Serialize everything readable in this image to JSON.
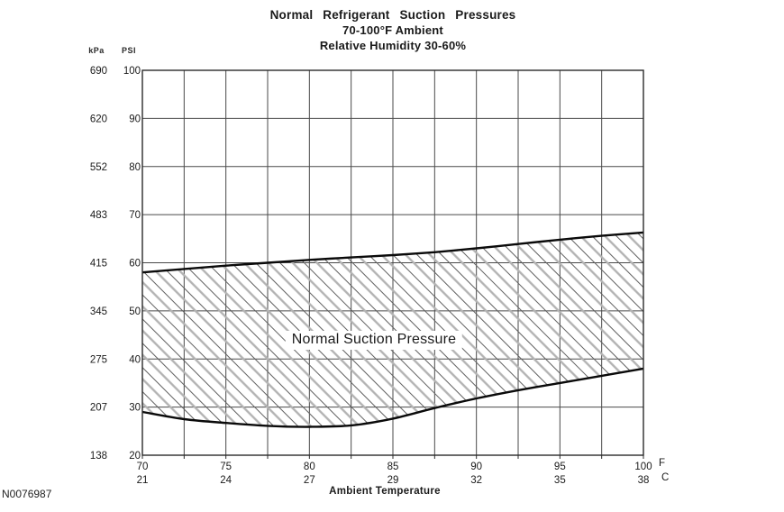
{
  "figure_id": "N0076987",
  "chart_data": {
    "type": "area",
    "title": "Normal Refrigerant Suction Pressures",
    "subtitle_ambient": "70-100°F Ambient",
    "subtitle_humidity": "Relative Humidity 30-60%",
    "band_label": "Normal Suction Pressure",
    "xlabel": "Ambient Temperature",
    "axis_units": {
      "y_left": "kPa",
      "y_right": "PSI",
      "x_primary": "F",
      "x_secondary": "C"
    },
    "xlim_f": [
      70,
      100
    ],
    "ylim_psi": [
      20,
      100
    ],
    "x_grid_step_f": 2.5,
    "y_grid_step_psi": 10,
    "grid": "on",
    "legend": "none",
    "band_fill": "diagonal-hatch",
    "x_ticks_f": [
      70,
      75,
      80,
      85,
      90,
      95,
      100
    ],
    "x_ticks_c": [
      21,
      24,
      27,
      29,
      32,
      35,
      38
    ],
    "y_ticks_psi": [
      100,
      90,
      80,
      70,
      60,
      50,
      40,
      30,
      20
    ],
    "y_ticks_kpa": [
      690,
      620,
      552,
      483,
      415,
      345,
      275,
      207,
      138
    ],
    "series": [
      {
        "name": "upper-normal-limit",
        "x_f": [
          70,
          72.5,
          75,
          77.5,
          80,
          82.5,
          85,
          87.5,
          90,
          92.5,
          95,
          97.5,
          100
        ],
        "psi": [
          58.0,
          58.7,
          59.4,
          60.0,
          60.6,
          61.1,
          61.6,
          62.2,
          63.0,
          63.9,
          64.8,
          65.6,
          66.3
        ]
      },
      {
        "name": "lower-normal-limit",
        "x_f": [
          70,
          72.5,
          75,
          77.5,
          80,
          82.5,
          85,
          87.5,
          90,
          92.5,
          95,
          97.5,
          100
        ],
        "psi": [
          29.0,
          27.5,
          26.7,
          26.1,
          25.9,
          26.2,
          27.6,
          29.8,
          31.8,
          33.5,
          35.0,
          36.5,
          38.0
        ]
      }
    ],
    "colors": {
      "background": "#ffffff",
      "ink": "#1a1a1a",
      "grid": "#4a4a4a",
      "border": "#2a2a2a",
      "curve": "#0a0a0a",
      "hatch_light": "#b3b3b3",
      "hatch_dark": "#606060"
    }
  }
}
